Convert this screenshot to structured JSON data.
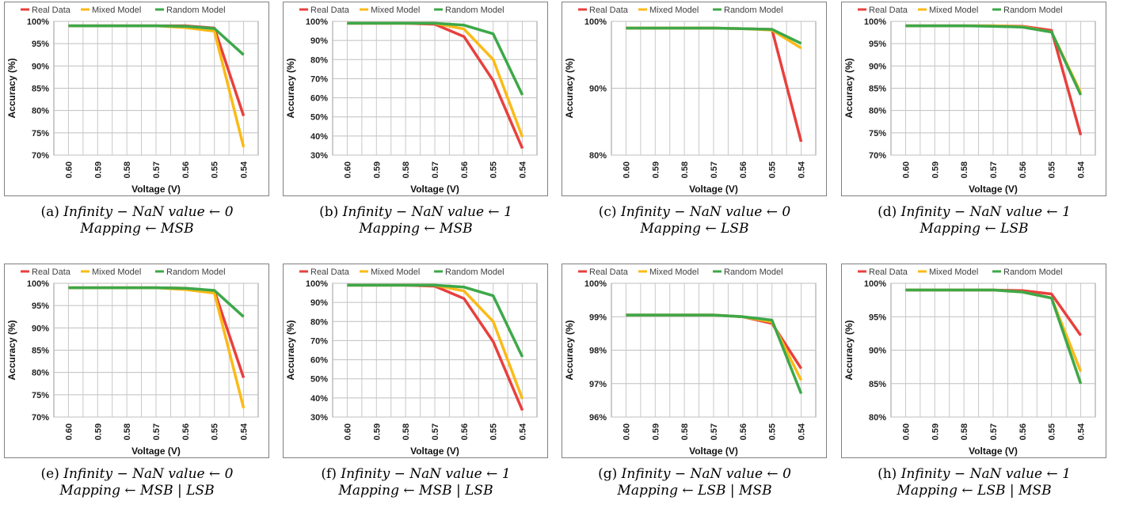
{
  "legend": {
    "items": [
      {
        "name": "Real Data",
        "color": "#E8403D"
      },
      {
        "name": "Mixed Model",
        "color": "#FBBA17"
      },
      {
        "name": "Random Model",
        "color": "#3DA849"
      }
    ]
  },
  "chart_data": [
    {
      "type": "line",
      "caption_label": "(a)",
      "caption_line1": "Infinity − NaN value ← 0",
      "caption_line2": "Mapping ← MSB",
      "xlabel": "Voltage (V)",
      "ylabel": "Accuracy (%)",
      "x": [
        "0.60",
        "0.59",
        "0.58",
        "0.57",
        "0.56",
        "0.55",
        "0.54"
      ],
      "ylim": [
        70,
        100
      ],
      "yticks": [
        70,
        75,
        80,
        85,
        90,
        95,
        100
      ],
      "ytick_labels": [
        "70%",
        "75%",
        "80%",
        "85%",
        "90%",
        "95%",
        "100%"
      ],
      "series": [
        {
          "name": "Real Data",
          "values": [
            99.0,
            99.0,
            99.0,
            99.0,
            99.0,
            98.5,
            78.8
          ]
        },
        {
          "name": "Mixed Model",
          "values": [
            99.0,
            99.0,
            99.0,
            99.0,
            98.6,
            97.8,
            71.8
          ]
        },
        {
          "name": "Random Model",
          "values": [
            99.0,
            99.0,
            99.0,
            99.0,
            98.9,
            98.4,
            92.5
          ]
        }
      ]
    },
    {
      "type": "line",
      "caption_label": "(b)",
      "caption_line1": "Infinity − NaN value ← 1",
      "caption_line2": "Mapping ← MSB",
      "xlabel": "Voltage (V)",
      "ylabel": "Accuracy (%)",
      "x": [
        "0.60",
        "0.59",
        "0.58",
        "0.57",
        "0.56",
        "0.55",
        "0.54"
      ],
      "ylim": [
        30,
        100
      ],
      "yticks": [
        30,
        40,
        50,
        60,
        70,
        80,
        90,
        100
      ],
      "ytick_labels": [
        "30%",
        "40%",
        "50%",
        "60%",
        "70%",
        "80%",
        "90%",
        "100%"
      ],
      "series": [
        {
          "name": "Real Data",
          "values": [
            99.0,
            99.0,
            99.0,
            98.5,
            92.0,
            69.0,
            33.5
          ]
        },
        {
          "name": "Mixed Model",
          "values": [
            99.0,
            99.0,
            99.0,
            99.0,
            96.0,
            80.0,
            39.5
          ]
        },
        {
          "name": "Random Model",
          "values": [
            99.0,
            99.0,
            99.0,
            99.0,
            98.0,
            93.5,
            61.5
          ]
        }
      ]
    },
    {
      "type": "line",
      "caption_label": "(c)",
      "caption_line1": "Infinity − NaN value ← 0",
      "caption_line2": "Mapping ← LSB",
      "xlabel": "Voltage (V)",
      "ylabel": "Accuracy (%)",
      "x": [
        "0.60",
        "0.59",
        "0.58",
        "0.57",
        "0.56",
        "0.55",
        "0.54"
      ],
      "ylim": [
        80,
        100
      ],
      "yticks": [
        80,
        90,
        100
      ],
      "ytick_labels": [
        "80%",
        "90%",
        "100%"
      ],
      "series": [
        {
          "name": "Real Data",
          "values": [
            99.0,
            99.0,
            99.0,
            99.0,
            98.9,
            98.8,
            82.0
          ]
        },
        {
          "name": "Mixed Model",
          "values": [
            99.0,
            99.0,
            99.0,
            99.0,
            98.9,
            98.7,
            96.0
          ]
        },
        {
          "name": "Random Model",
          "values": [
            99.0,
            99.0,
            99.0,
            99.0,
            98.9,
            98.8,
            96.7
          ]
        }
      ]
    },
    {
      "type": "line",
      "caption_label": "(d)",
      "caption_line1": "Infinity − NaN value ← 1",
      "caption_line2": "Mapping ← LSB",
      "xlabel": "Voltage (V)",
      "ylabel": "Accuracy (%)",
      "x": [
        "0.60",
        "0.59",
        "0.58",
        "0.57",
        "0.56",
        "0.55",
        "0.54"
      ],
      "ylim": [
        70,
        100
      ],
      "yticks": [
        70,
        75,
        80,
        85,
        90,
        95,
        100
      ],
      "ytick_labels": [
        "70%",
        "75%",
        "80%",
        "85%",
        "90%",
        "95%",
        "100%"
      ],
      "series": [
        {
          "name": "Real Data",
          "values": [
            99.0,
            99.0,
            99.0,
            99.0,
            98.9,
            98.0,
            74.5
          ]
        },
        {
          "name": "Mixed Model",
          "values": [
            99.0,
            99.0,
            99.0,
            99.0,
            98.8,
            97.6,
            84.0
          ]
        },
        {
          "name": "Random Model",
          "values": [
            99.0,
            99.0,
            99.0,
            98.9,
            98.7,
            97.6,
            83.5
          ]
        }
      ]
    },
    {
      "type": "line",
      "caption_label": "(e)",
      "caption_line1": "Infinity − NaN value ← 0",
      "caption_line2": "Mapping ← MSB | LSB",
      "xlabel": "Voltage (V)",
      "ylabel": "Accuracy (%)",
      "x": [
        "0.60",
        "0.59",
        "0.58",
        "0.57",
        "0.56",
        "0.55",
        "0.54"
      ],
      "ylim": [
        70,
        100
      ],
      "yticks": [
        70,
        75,
        80,
        85,
        90,
        95,
        100
      ],
      "ytick_labels": [
        "70%",
        "75%",
        "80%",
        "85%",
        "90%",
        "95%",
        "100%"
      ],
      "series": [
        {
          "name": "Real Data",
          "values": [
            99.0,
            99.0,
            99.0,
            99.0,
            98.9,
            98.3,
            78.8
          ]
        },
        {
          "name": "Mixed Model",
          "values": [
            99.0,
            99.0,
            99.0,
            99.0,
            98.6,
            97.8,
            72.0
          ]
        },
        {
          "name": "Random Model",
          "values": [
            99.0,
            99.0,
            99.0,
            99.0,
            98.9,
            98.4,
            92.5
          ]
        }
      ]
    },
    {
      "type": "line",
      "caption_label": "(f)",
      "caption_line1": "Infinity − NaN value ← 1",
      "caption_line2": "Mapping ← MSB | LSB",
      "xlabel": "Voltage (V)",
      "ylabel": "Accuracy (%)",
      "x": [
        "0.60",
        "0.59",
        "0.58",
        "0.57",
        "0.56",
        "0.55",
        "0.54"
      ],
      "ylim": [
        30,
        100
      ],
      "yticks": [
        30,
        40,
        50,
        60,
        70,
        80,
        90,
        100
      ],
      "ytick_labels": [
        "30%",
        "40%",
        "50%",
        "60%",
        "70%",
        "80%",
        "90%",
        "100%"
      ],
      "series": [
        {
          "name": "Real Data",
          "values": [
            99.0,
            99.0,
            99.0,
            98.5,
            92.0,
            69.5,
            33.5
          ]
        },
        {
          "name": "Mixed Model",
          "values": [
            99.0,
            99.0,
            99.0,
            99.0,
            96.0,
            80.0,
            39.5
          ]
        },
        {
          "name": "Random Model",
          "values": [
            99.0,
            99.0,
            99.0,
            99.0,
            98.0,
            93.5,
            61.5
          ]
        }
      ]
    },
    {
      "type": "line",
      "caption_label": "(g)",
      "caption_line1": "Infinity − NaN value ← 0",
      "caption_line2": "Mapping ← LSB | MSB",
      "xlabel": "Voltage (V)",
      "ylabel": "Accuracy (%)",
      "x": [
        "0.60",
        "0.59",
        "0.58",
        "0.57",
        "0.56",
        "0.55",
        "0.54"
      ],
      "ylim": [
        96,
        100
      ],
      "yticks": [
        96,
        97,
        98,
        99,
        100
      ],
      "ytick_labels": [
        "96%",
        "97%",
        "98%",
        "99%",
        "100%"
      ],
      "series": [
        {
          "name": "Real Data",
          "values": [
            99.05,
            99.05,
            99.05,
            99.05,
            99.0,
            98.8,
            97.45
          ]
        },
        {
          "name": "Mixed Model",
          "values": [
            99.05,
            99.05,
            99.05,
            99.05,
            99.0,
            98.85,
            97.1
          ]
        },
        {
          "name": "Random Model",
          "values": [
            99.05,
            99.05,
            99.05,
            99.05,
            99.0,
            98.9,
            96.7
          ]
        }
      ]
    },
    {
      "type": "line",
      "caption_label": "(h)",
      "caption_line1": "Infinity − NaN value ← 1",
      "caption_line2": "Mapping ← LSB | MSB",
      "xlabel": "Voltage (V)",
      "ylabel": "Accuracy (%)",
      "x": [
        "0.60",
        "0.59",
        "0.58",
        "0.57",
        "0.56",
        "0.55",
        "0.54"
      ],
      "ylim": [
        80,
        100
      ],
      "yticks": [
        80,
        85,
        90,
        95,
        100
      ],
      "ytick_labels": [
        "80%",
        "85%",
        "90%",
        "95%",
        "100%"
      ],
      "series": [
        {
          "name": "Real Data",
          "values": [
            99.0,
            99.0,
            99.0,
            99.0,
            98.9,
            98.4,
            92.2
          ]
        },
        {
          "name": "Mixed Model",
          "values": [
            99.0,
            99.0,
            99.0,
            99.0,
            98.7,
            97.8,
            86.8
          ]
        },
        {
          "name": "Random Model",
          "values": [
            99.0,
            99.0,
            99.0,
            99.0,
            98.7,
            97.8,
            85.0
          ]
        }
      ]
    }
  ]
}
